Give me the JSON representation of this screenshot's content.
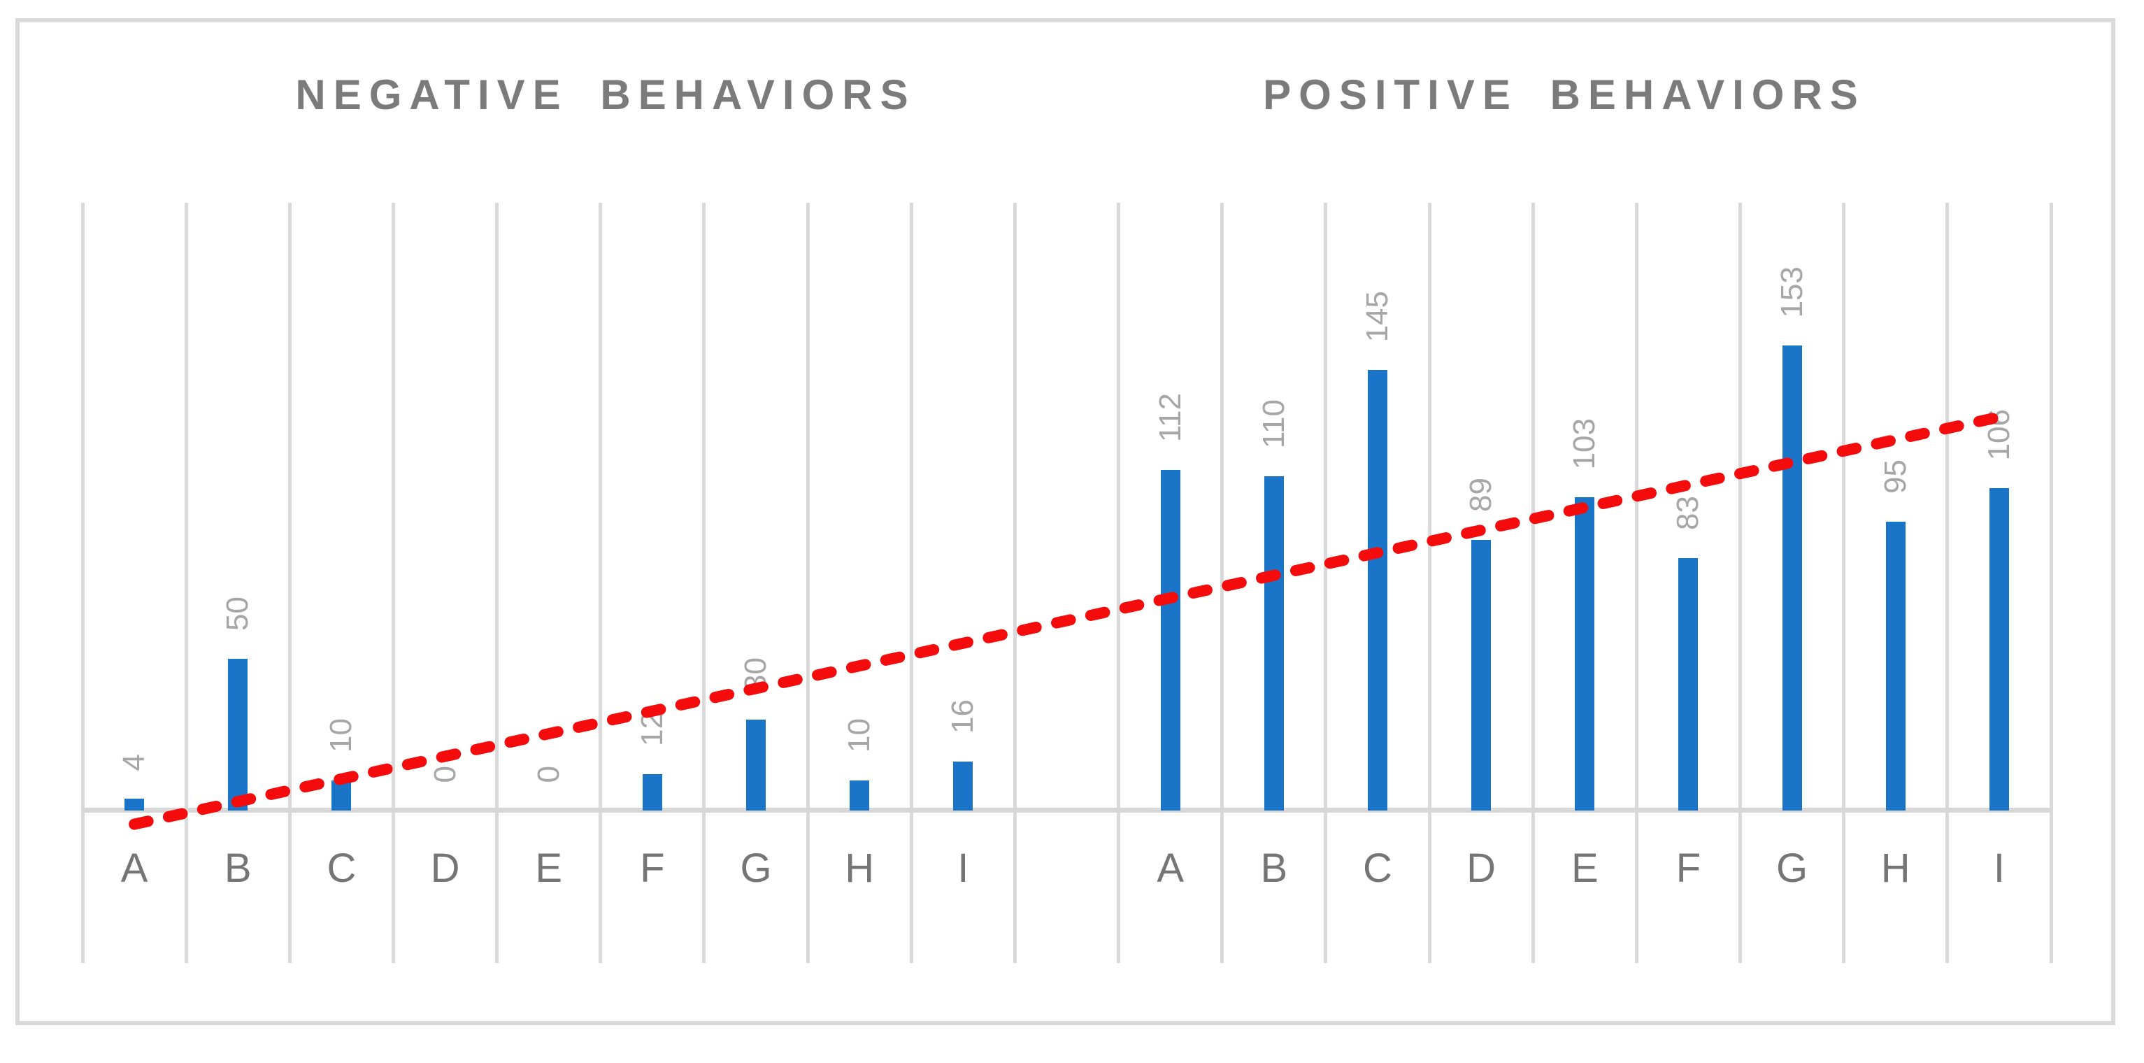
{
  "chart_data": {
    "type": "bar",
    "groups": [
      {
        "title": "NEGATIVE BEHAVIORS",
        "categories": [
          "A",
          "B",
          "C",
          "D",
          "E",
          "F",
          "G",
          "H",
          "I"
        ],
        "values": [
          4,
          50,
          10,
          0,
          0,
          12,
          30,
          10,
          16
        ]
      },
      {
        "title": "POSITIVE BEHAVIORS",
        "categories": [
          "A",
          "B",
          "C",
          "D",
          "E",
          "F",
          "G",
          "H",
          "I"
        ],
        "values": [
          112,
          110,
          145,
          89,
          103,
          83,
          153,
          95,
          106
        ]
      }
    ],
    "gap_columns_between_groups": 1,
    "ylim": [
      0,
      200
    ],
    "y_axis_visible": false,
    "gridlines": "vertical",
    "data_labels": {
      "position": "outside-end",
      "rotation_deg": 90
    },
    "trendline": {
      "type": "linear",
      "style": "dashed",
      "start_value": -4.5,
      "end_value": 129.5,
      "spans": "first-to-last-category"
    },
    "colors": {
      "bar": "#1a75c8",
      "gridline": "#d9d9d9",
      "axis_line": "#d7d7d7",
      "data_label": "#a6a6a6",
      "category_label": "#757575",
      "title": "#7b7b7b",
      "trendline": "#f40b0b",
      "frame_border": "#d9d9d9",
      "background": "#ffffff"
    }
  }
}
